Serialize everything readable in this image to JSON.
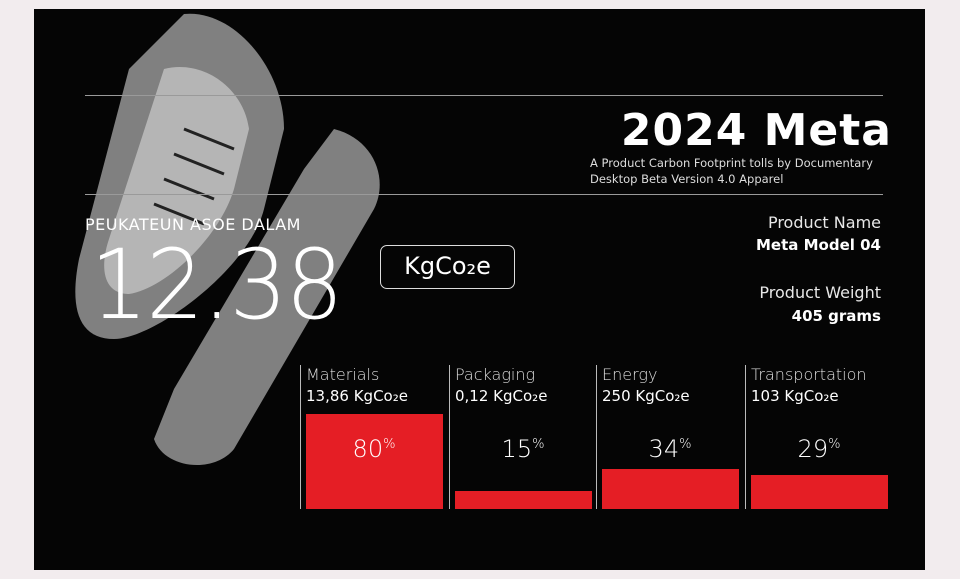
{
  "header": {
    "title": "2024 Meta",
    "subtitle_line1": "A Product Carbon Footprint tolls by Documentary",
    "subtitle_line2": "Desktop Beta Version 4.0 Apparel"
  },
  "product": {
    "name_label": "Product Name",
    "name_value": "Meta Model 04",
    "weight_label": "Product Weight",
    "weight_value": "405 grams"
  },
  "total": {
    "label": "PEUKATEUN ASOE DALAM",
    "value": "12.38",
    "unit": "KgCo₂e"
  },
  "accent": "#e51e25",
  "categories": [
    {
      "name": "Materials",
      "amount": "13,86 KgCo₂e",
      "percent": "80",
      "percent_sign": "%",
      "level": 80
    },
    {
      "name": "Packaging",
      "amount": "0,12 KgCo₂e",
      "percent": "15",
      "percent_sign": "%",
      "level": 15
    },
    {
      "name": "Energy",
      "amount": "250 KgCo₂e",
      "percent": "34",
      "percent_sign": "%",
      "level": 34
    },
    {
      "name": "Transportation",
      "amount": "103 KgCo₂e",
      "percent": "29",
      "percent_sign": "%",
      "level": 29
    }
  ]
}
